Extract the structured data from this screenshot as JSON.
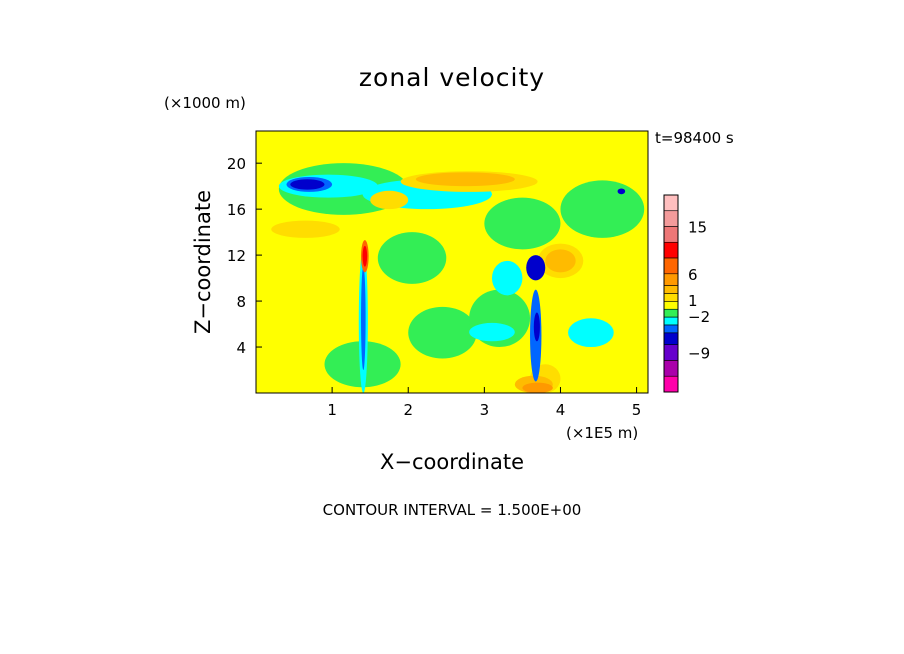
{
  "chart_data": {
    "type": "heatmap",
    "title": "zonal velocity",
    "xlabel": "X−coordinate",
    "ylabel": "Z−coordinate",
    "x_unit": "(×1E5 m)",
    "y_unit": "(×1000 m)",
    "time_label": "t=98400 s",
    "footer": "CONTOUR INTERVAL = 1.500E+00",
    "xlim": [
      0,
      5.15
    ],
    "ylim": [
      0,
      22.8
    ],
    "x_ticks": [
      {
        "value": 1,
        "label": "1"
      },
      {
        "value": 2,
        "label": "2"
      },
      {
        "value": 3,
        "label": "3"
      },
      {
        "value": 4,
        "label": "4"
      },
      {
        "value": 5,
        "label": "5"
      }
    ],
    "y_ticks": [
      {
        "value": 4,
        "label": "4"
      },
      {
        "value": 8,
        "label": "8"
      },
      {
        "value": 12,
        "label": "12"
      },
      {
        "value": 16,
        "label": "16"
      },
      {
        "value": 20,
        "label": "20"
      }
    ],
    "colorbar": {
      "levels": [
        {
          "value": 19.5,
          "color": "#ffbfbf"
        },
        {
          "value": 16.5,
          "color": "#f39b9b"
        },
        {
          "value": 13.5,
          "color": "#ee7777"
        },
        {
          "value": 10.5,
          "color": "#ff0000"
        },
        {
          "value": 7.5,
          "color": "#ff6600"
        },
        {
          "value": 4.5,
          "color": "#ff9900"
        },
        {
          "value": 3.0,
          "color": "#ffbb00"
        },
        {
          "value": 1.5,
          "color": "#ffdd00"
        },
        {
          "value": 0.0,
          "color": "#ffff00"
        },
        {
          "value": -1.5,
          "color": "#33ee55"
        },
        {
          "value": -3.0,
          "color": "#00ffff"
        },
        {
          "value": -4.5,
          "color": "#0066ff"
        },
        {
          "value": -6.0,
          "color": "#0000cc"
        },
        {
          "value": -9.0,
          "color": "#6600cc"
        },
        {
          "value": -12.0,
          "color": "#aa00aa"
        },
        {
          "value": -15.0,
          "color": "#ff00aa"
        }
      ],
      "labels": [
        {
          "value": 15,
          "label": "15"
        },
        {
          "value": 6,
          "label": "6"
        },
        {
          "value": 1,
          "label": "1"
        },
        {
          "value": -2,
          "label": "−2"
        },
        {
          "value": -9,
          "label": "−9"
        }
      ]
    },
    "regions": [
      {
        "x": 0.0,
        "y": 0.0,
        "w": 5.15,
        "h": 22.8,
        "level": 0.0
      },
      {
        "x": 0.9,
        "y": 0.5,
        "w": 1.0,
        "h": 4.0,
        "level": -1.5
      },
      {
        "x": 2.0,
        "y": 3.0,
        "w": 0.9,
        "h": 4.5,
        "level": -1.5
      },
      {
        "x": 2.8,
        "y": 4.0,
        "w": 0.8,
        "h": 5.0,
        "level": -1.5
      },
      {
        "x": 1.6,
        "y": 9.5,
        "w": 0.9,
        "h": 4.5,
        "level": -1.5
      },
      {
        "x": 3.0,
        "y": 12.5,
        "w": 1.0,
        "h": 4.5,
        "level": -1.5
      },
      {
        "x": 0.3,
        "y": 15.5,
        "w": 1.7,
        "h": 4.5,
        "level": -1.5
      },
      {
        "x": 4.0,
        "y": 13.5,
        "w": 1.1,
        "h": 5.0,
        "level": -1.5
      },
      {
        "x": 1.4,
        "y": 16.0,
        "w": 1.7,
        "h": 2.6,
        "level": -3.0
      },
      {
        "x": 0.3,
        "y": 17.0,
        "w": 1.3,
        "h": 2.0,
        "level": -3.0
      },
      {
        "x": 2.8,
        "y": 4.5,
        "w": 0.6,
        "h": 1.6,
        "level": -3.0
      },
      {
        "x": 4.1,
        "y": 4.0,
        "w": 0.6,
        "h": 2.5,
        "level": -3.0
      },
      {
        "x": 3.1,
        "y": 8.5,
        "w": 0.4,
        "h": 3.0,
        "level": -3.0
      },
      {
        "x": 0.2,
        "y": 13.5,
        "w": 0.9,
        "h": 1.5,
        "level": 1.5
      },
      {
        "x": 1.5,
        "y": 16.0,
        "w": 0.5,
        "h": 1.6,
        "level": 1.5
      },
      {
        "x": 1.9,
        "y": 17.5,
        "w": 1.8,
        "h": 1.8,
        "level": 1.5
      },
      {
        "x": 3.6,
        "y": 0.0,
        "w": 0.4,
        "h": 2.5,
        "level": 1.5
      },
      {
        "x": 3.7,
        "y": 10.0,
        "w": 0.6,
        "h": 3.0,
        "level": 1.5
      },
      {
        "x": 2.1,
        "y": 18.0,
        "w": 1.3,
        "h": 1.2,
        "level": 3.0
      },
      {
        "x": 3.8,
        "y": 10.5,
        "w": 0.4,
        "h": 2.0,
        "level": 3.0
      },
      {
        "x": 3.4,
        "y": 0.0,
        "w": 0.5,
        "h": 1.5,
        "level": 3.0
      },
      {
        "x": 3.5,
        "y": 0.0,
        "w": 0.4,
        "h": 0.9,
        "level": 4.5
      },
      {
        "x": 0.4,
        "y": 17.5,
        "w": 0.6,
        "h": 1.3,
        "level": -4.5
      },
      {
        "x": 0.45,
        "y": 17.7,
        "w": 0.45,
        "h": 0.9,
        "level": -6.0
      },
      {
        "x": 3.55,
        "y": 9.8,
        "w": 0.25,
        "h": 2.2,
        "level": -6.0
      },
      {
        "x": 3.6,
        "y": 1.0,
        "w": 0.15,
        "h": 8.0,
        "level": -4.5
      },
      {
        "x": 3.65,
        "y": 4.5,
        "w": 0.08,
        "h": 2.5,
        "level": -6.0
      },
      {
        "x": 1.35,
        "y": 0.0,
        "w": 0.12,
        "h": 12.5,
        "level": -3.0
      },
      {
        "x": 1.38,
        "y": 2.0,
        "w": 0.06,
        "h": 9.0,
        "level": -4.5
      },
      {
        "x": 1.38,
        "y": 10.5,
        "w": 0.1,
        "h": 2.8,
        "level": 7.5
      },
      {
        "x": 1.4,
        "y": 11.0,
        "w": 0.06,
        "h": 1.8,
        "level": 10.5
      },
      {
        "x": 4.75,
        "y": 17.3,
        "w": 0.1,
        "h": 0.5,
        "level": -6.0
      }
    ]
  }
}
